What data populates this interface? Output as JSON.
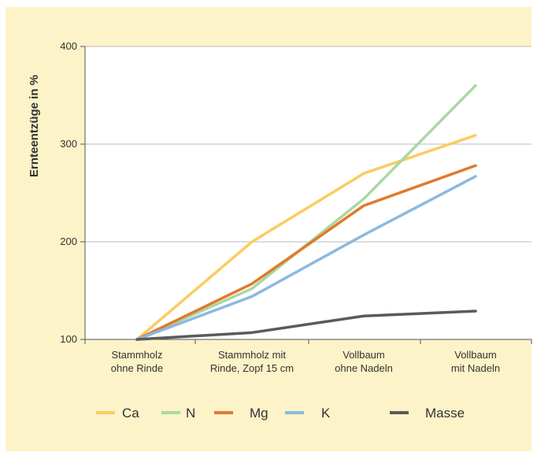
{
  "chart_data": {
    "type": "line",
    "ylabel": "Ernteentzüge in %",
    "xlabel": "",
    "ylim": [
      100,
      400
    ],
    "yticks": [
      100,
      200,
      300,
      400
    ],
    "grid": "horizontal",
    "legend": "bottom",
    "categories": [
      [
        "Stammholz",
        "ohne Rinde"
      ],
      [
        "Stammholz mit",
        "Rinde, Zopf 15 cm"
      ],
      [
        "Vollbaum",
        "ohne Nadeln"
      ],
      [
        "Vollbaum",
        "mit Nadeln"
      ]
    ],
    "series": [
      {
        "name": "Ca",
        "color": "#fbcc62",
        "values": [
          100,
          200,
          270,
          309
        ]
      },
      {
        "name": "N",
        "color": "#a9d9a2",
        "values": [
          100,
          152,
          244,
          360
        ]
      },
      {
        "name": "Mg",
        "color": "#e07a2c",
        "values": [
          100,
          157,
          237,
          278
        ]
      },
      {
        "name": "K",
        "color": "#8cb9e0",
        "values": [
          100,
          144,
          207,
          267
        ]
      },
      {
        "name": "Masse",
        "color": "#5a5a5a",
        "values": [
          100,
          107,
          124,
          129
        ]
      }
    ]
  }
}
